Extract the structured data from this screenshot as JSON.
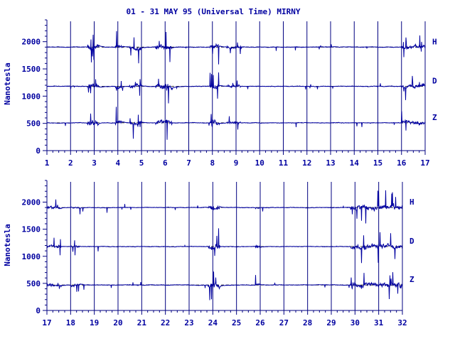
{
  "chart_data": {
    "type": "line",
    "title": "01 - 31 MAY 95 (Universal Time) MIRNY",
    "ylabel": "Nanotesla",
    "colors": {
      "trace": "#0000a0",
      "frame": "#000080",
      "day_grid": "#000080"
    },
    "panels": [
      {
        "x_ticks": [
          "1",
          "2",
          "3",
          "4",
          "5",
          "6",
          "7",
          "8",
          "9",
          "10",
          "11",
          "12",
          "13",
          "14",
          "15",
          "16",
          "17"
        ],
        "xlim": [
          1,
          17
        ],
        "ylim": [
          0,
          2400
        ],
        "y_ticks": [
          0,
          500,
          1000,
          1500,
          2000
        ],
        "series": [
          {
            "name": "H",
            "baseline": 1900
          },
          {
            "name": "D",
            "baseline": 1180
          },
          {
            "name": "Z",
            "baseline": 510
          }
        ],
        "disturbance": [
          [
            2.7,
            3.2,
            1.0
          ],
          [
            3.9,
            4.2,
            0.8
          ],
          [
            4.5,
            5.0,
            0.8
          ],
          [
            5.6,
            6.3,
            1.0
          ],
          [
            7.9,
            8.3,
            1.0
          ],
          [
            8.6,
            9.2,
            0.5
          ],
          [
            16.0,
            17.0,
            0.7
          ]
        ]
      },
      {
        "x_ticks": [
          "17",
          "18",
          "19",
          "20",
          "21",
          "22",
          "23",
          "24",
          "25",
          "26",
          "27",
          "28",
          "29",
          "30",
          "31",
          "32"
        ],
        "xlim": [
          17,
          32
        ],
        "ylim": [
          0,
          2400
        ],
        "y_ticks": [
          0,
          500,
          1000,
          1500,
          2000
        ],
        "series": [
          {
            "name": "H",
            "baseline": 1900
          },
          {
            "name": "D",
            "baseline": 1180
          },
          {
            "name": "Z",
            "baseline": 470
          }
        ],
        "disturbance": [
          [
            17.0,
            17.6,
            0.6
          ],
          [
            18.0,
            18.4,
            0.5
          ],
          [
            23.8,
            24.3,
            1.0
          ],
          [
            25.8,
            26.0,
            0.5
          ],
          [
            29.8,
            32.0,
            0.9
          ]
        ]
      }
    ]
  }
}
